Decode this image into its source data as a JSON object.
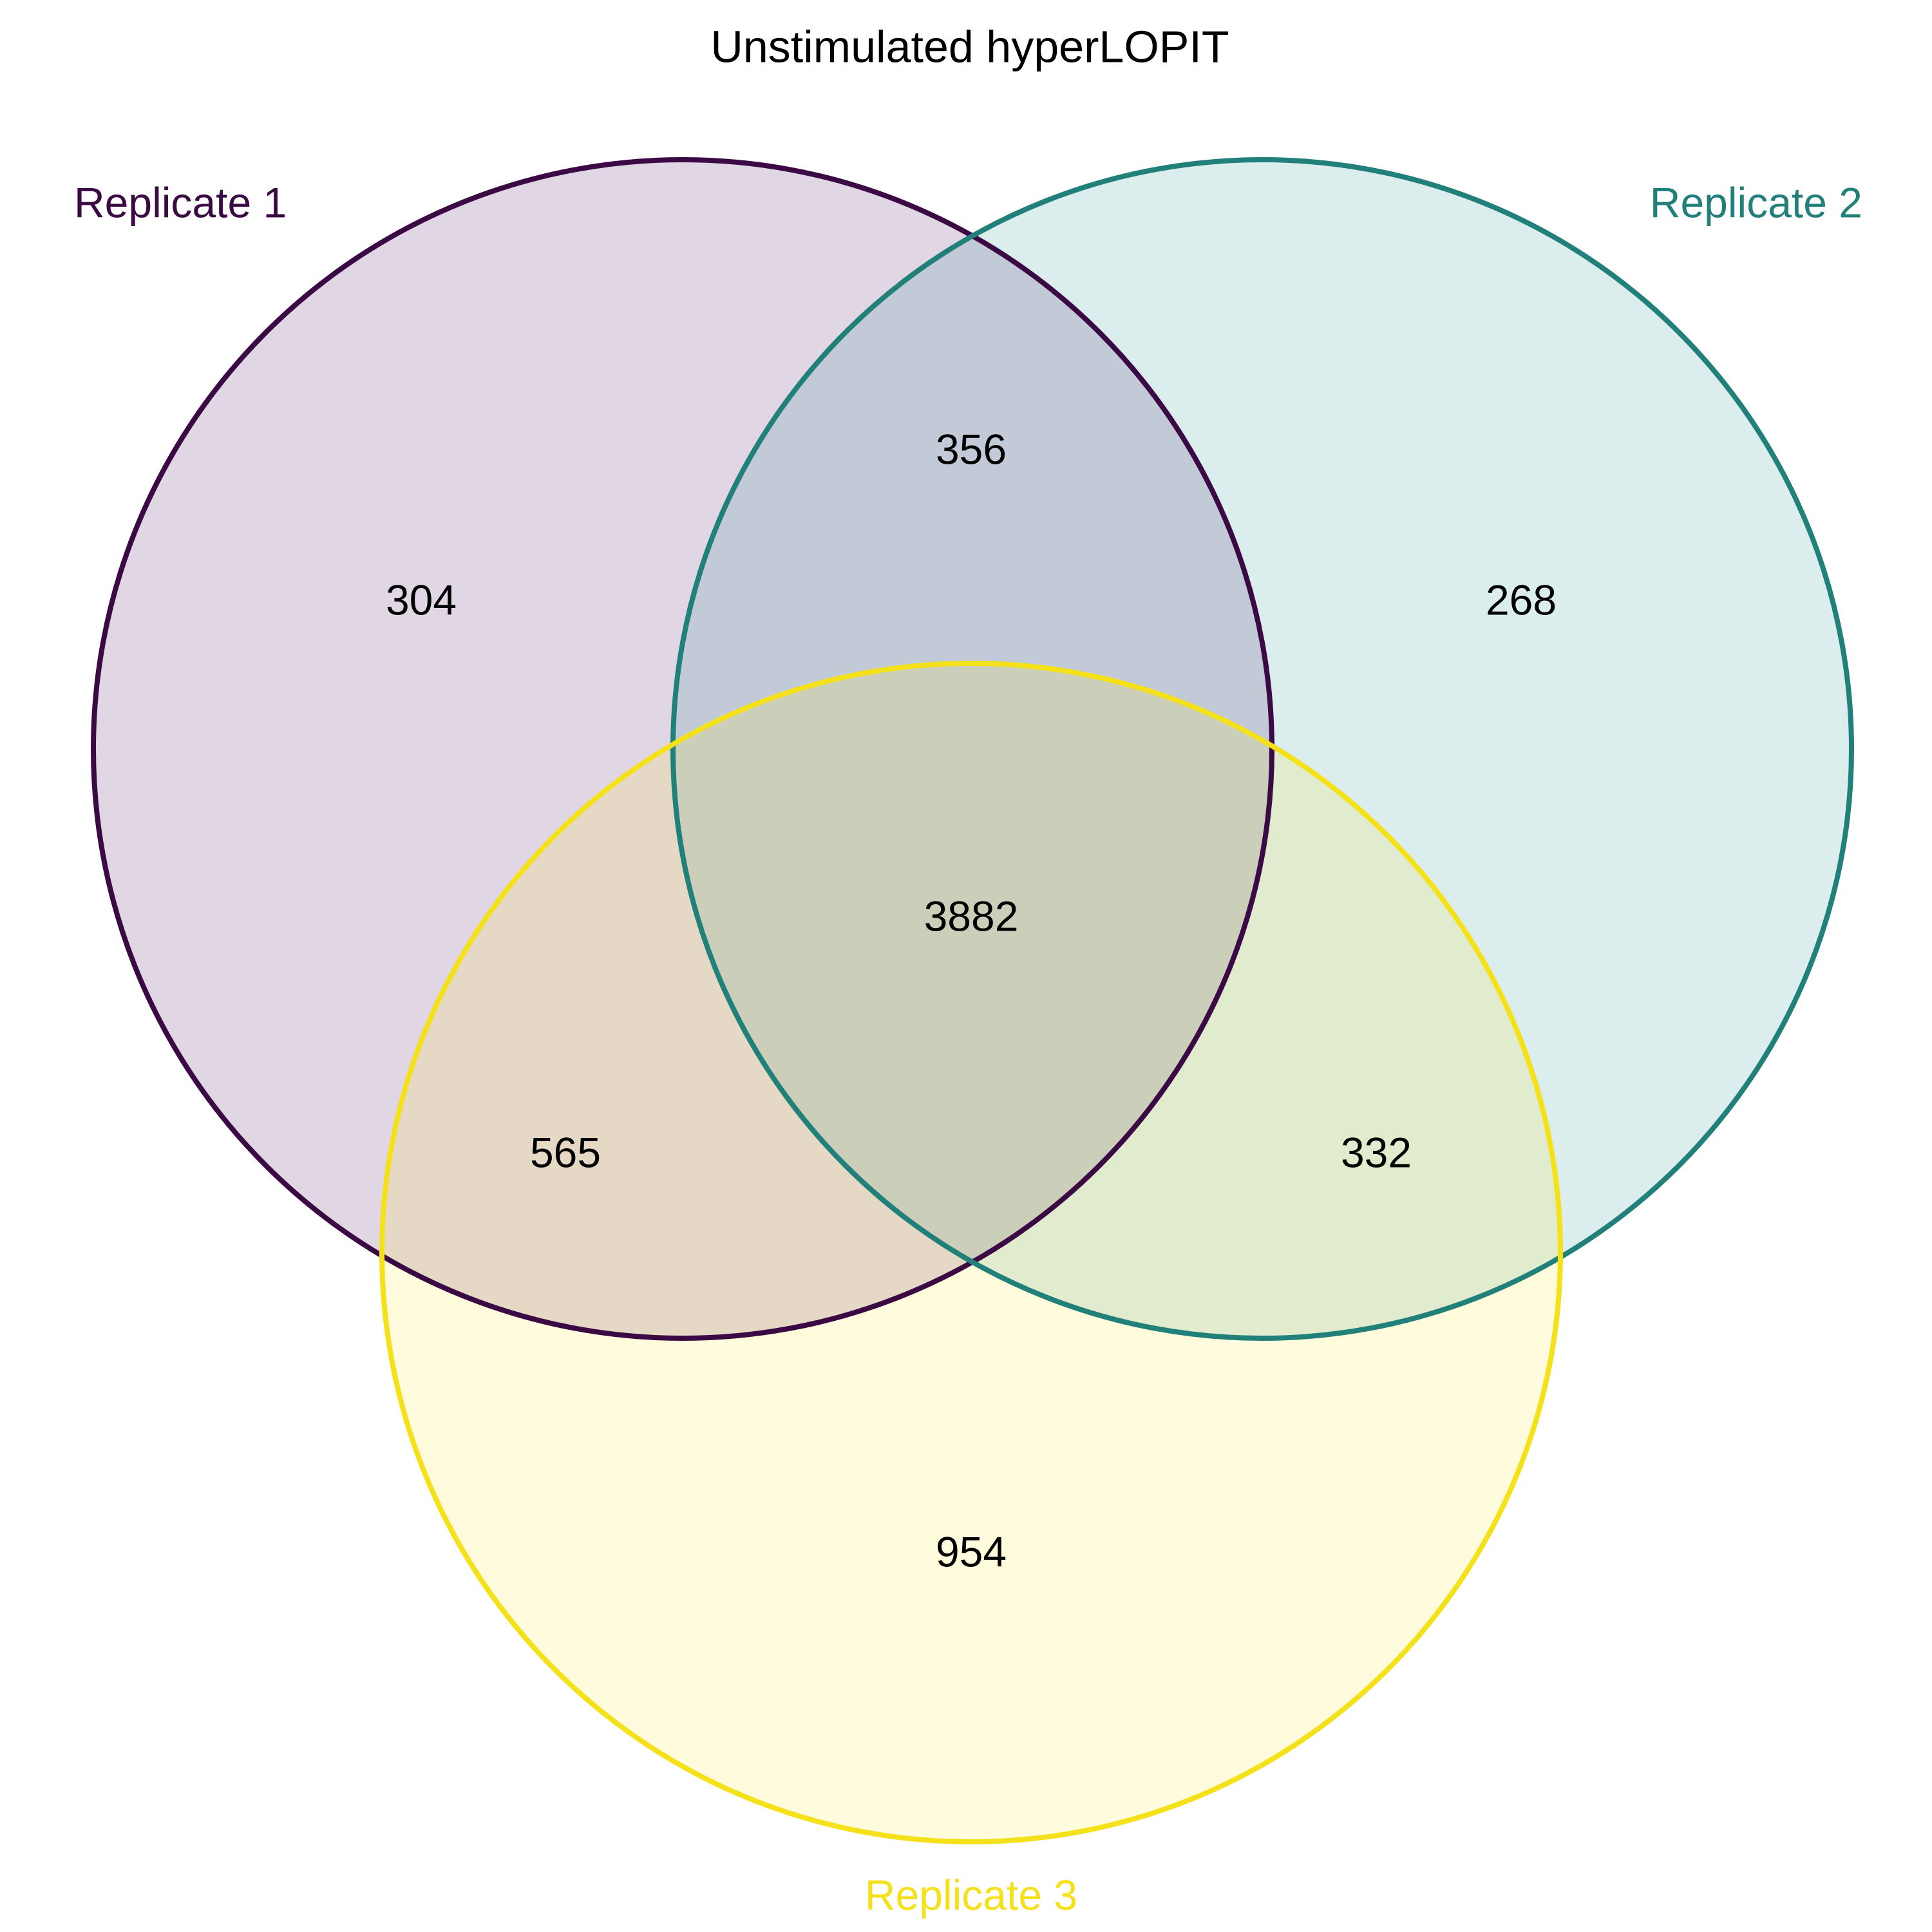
{
  "title": "Unstimulated hyperLOPIT",
  "sets": [
    {
      "label": "Replicate 1",
      "color": "#3b0a45",
      "fill": "#440154"
    },
    {
      "label": "Replicate 2",
      "color": "#21807a",
      "fill": "#21918c"
    },
    {
      "label": "Replicate 3",
      "color": "#f5e11a",
      "fill": "#fde725"
    }
  ],
  "regions": {
    "only_1": "304",
    "only_2": "268",
    "only_3": "954",
    "r1_r2": "356",
    "r1_r3": "565",
    "r2_r3": "332",
    "all": "3882"
  }
}
